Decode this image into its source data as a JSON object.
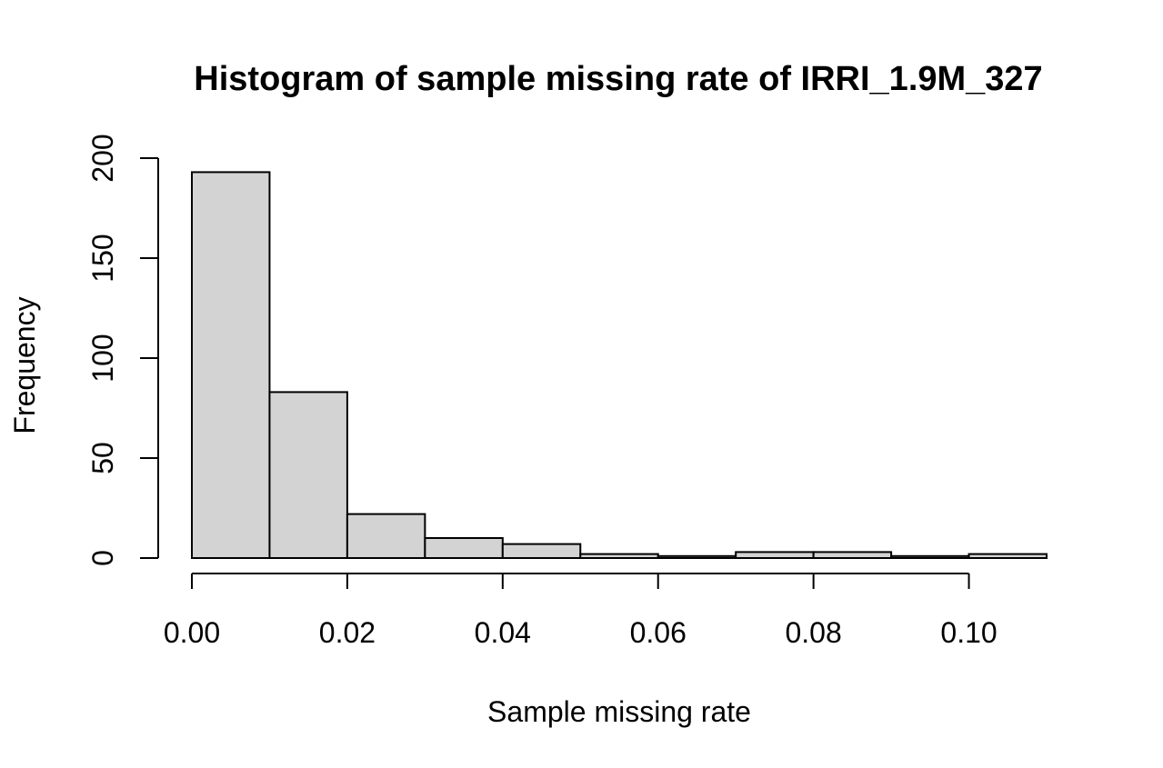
{
  "chart_data": {
    "type": "bar",
    "title": "Histogram of sample missing rate of IRRI_1.9M_327",
    "xlabel": "Sample missing rate",
    "ylabel": "Frequency",
    "bins": [
      {
        "start": 0.0,
        "end": 0.01,
        "count": 193
      },
      {
        "start": 0.01,
        "end": 0.02,
        "count": 83
      },
      {
        "start": 0.02,
        "end": 0.03,
        "count": 22
      },
      {
        "start": 0.03,
        "end": 0.04,
        "count": 10
      },
      {
        "start": 0.04,
        "end": 0.05,
        "count": 7
      },
      {
        "start": 0.05,
        "end": 0.06,
        "count": 2
      },
      {
        "start": 0.06,
        "end": 0.07,
        "count": 1
      },
      {
        "start": 0.07,
        "end": 0.08,
        "count": 3
      },
      {
        "start": 0.08,
        "end": 0.09,
        "count": 3
      },
      {
        "start": 0.09,
        "end": 0.1,
        "count": 1
      },
      {
        "start": 0.1,
        "end": 0.11,
        "count": 2
      }
    ],
    "xlim": [
      0,
      0.11
    ],
    "ylim": [
      0,
      200
    ],
    "x_ticks": [
      0.0,
      0.02,
      0.04,
      0.06,
      0.08,
      0.1
    ],
    "x_tick_labels": [
      "0.00",
      "0.02",
      "0.04",
      "0.06",
      "0.08",
      "0.10"
    ],
    "y_ticks": [
      0,
      50,
      100,
      150,
      200
    ],
    "y_tick_labels": [
      "0",
      "50",
      "100",
      "150",
      "200"
    ],
    "colors": {
      "bar_fill": "#d3d3d3",
      "bar_stroke": "#000000"
    },
    "grid": false,
    "legend": "none"
  }
}
